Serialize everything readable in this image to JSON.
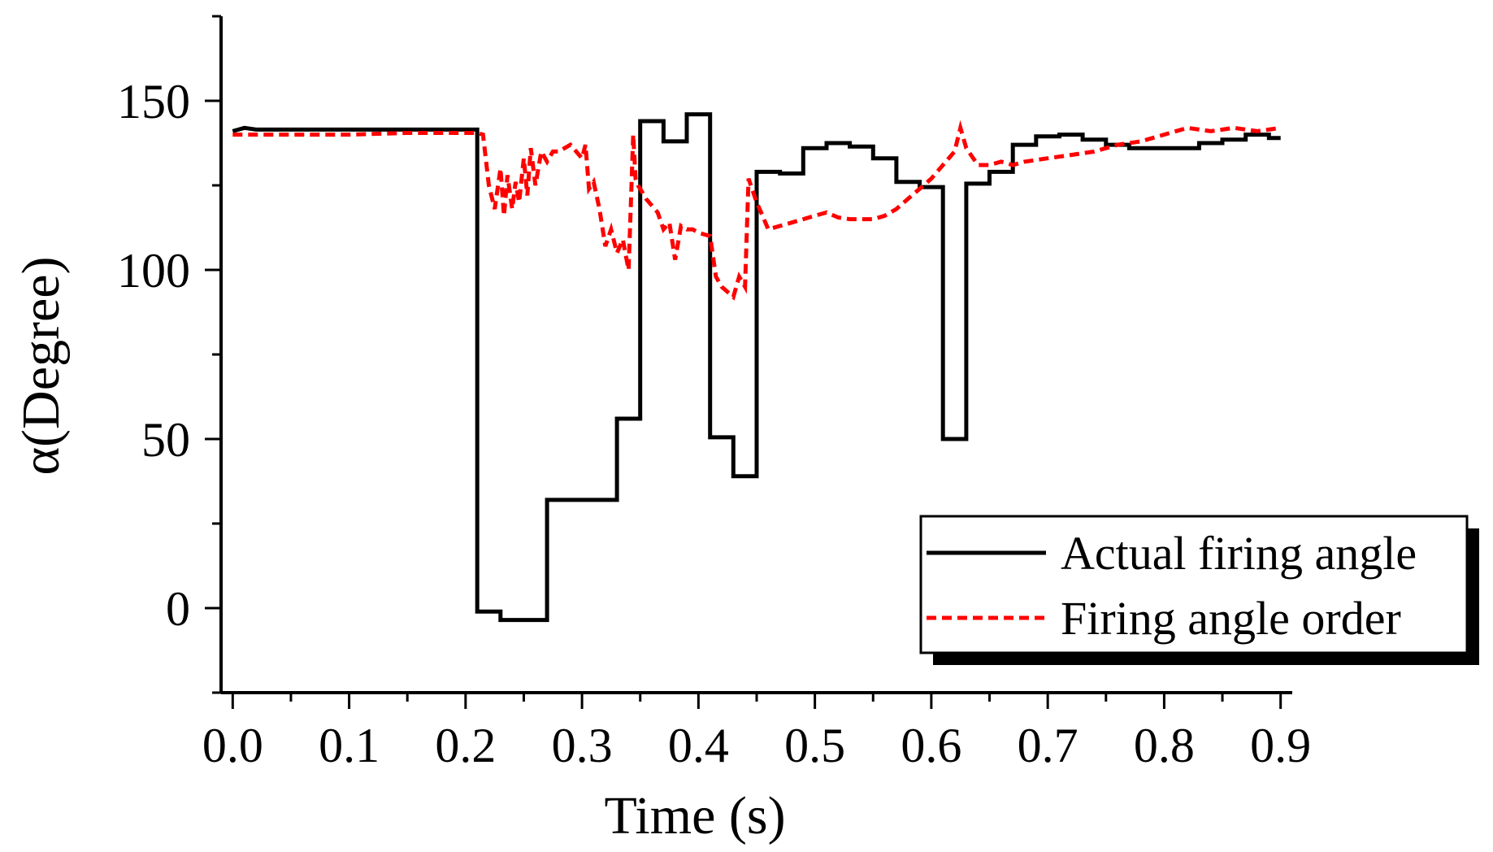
{
  "chart_data": {
    "type": "line",
    "title": "",
    "xlabel": "Time (s)",
    "ylabel": "α(Degree)",
    "xlim": [
      -0.01,
      0.91
    ],
    "ylim": [
      -25,
      175
    ],
    "xticks": [
      0.0,
      0.1,
      0.2,
      0.3,
      0.4,
      0.5,
      0.6,
      0.7,
      0.8,
      0.9
    ],
    "xtick_labels": [
      "0.0",
      "0.1",
      "0.2",
      "0.3",
      "0.4",
      "0.5",
      "0.6",
      "0.7",
      "0.8",
      "0.9"
    ],
    "yticks": [
      0,
      50,
      100,
      150
    ],
    "ytick_labels": [
      "0",
      "50",
      "100",
      "150"
    ],
    "grid": false,
    "legend_position": "bottom-right",
    "series": [
      {
        "name": "Actual firing angle",
        "color": "#000000",
        "style": "solid",
        "step": true,
        "x": [
          0.0,
          0.01,
          0.02,
          0.05,
          0.1,
          0.15,
          0.2,
          0.21,
          0.21,
          0.23,
          0.23,
          0.27,
          0.27,
          0.33,
          0.33,
          0.35,
          0.35,
          0.37,
          0.37,
          0.39,
          0.39,
          0.41,
          0.41,
          0.43,
          0.43,
          0.45,
          0.45,
          0.47,
          0.47,
          0.49,
          0.49,
          0.51,
          0.51,
          0.53,
          0.53,
          0.55,
          0.55,
          0.57,
          0.57,
          0.59,
          0.59,
          0.61,
          0.61,
          0.63,
          0.63,
          0.65,
          0.65,
          0.67,
          0.67,
          0.69,
          0.69,
          0.71,
          0.71,
          0.73,
          0.73,
          0.75,
          0.75,
          0.77,
          0.77,
          0.79,
          0.79,
          0.81,
          0.81,
          0.83,
          0.83,
          0.85,
          0.85,
          0.87,
          0.87,
          0.89,
          0.89,
          0.9
        ],
        "y": [
          141,
          142,
          141.5,
          141.5,
          141.5,
          141.5,
          141.5,
          141.5,
          -1,
          -1,
          -3.5,
          -3.5,
          32,
          32,
          56,
          56,
          144,
          144,
          138,
          138,
          146,
          146,
          50.5,
          50.5,
          39,
          39,
          129,
          129,
          128.5,
          128.5,
          136,
          136,
          137.5,
          137.5,
          136.5,
          136.5,
          133,
          133,
          126,
          126,
          124.5,
          124.5,
          50,
          50,
          125.5,
          125.5,
          129,
          129,
          137,
          137,
          139.5,
          139.5,
          140,
          140,
          138.5,
          138.5,
          137,
          137,
          136,
          136,
          136,
          136,
          136,
          136,
          137.5,
          137.5,
          138.5,
          138.5,
          140,
          140,
          139,
          139
        ]
      },
      {
        "name": "Firing angle order",
        "color": "#ff0000",
        "style": "dashed",
        "step": false,
        "x": [
          0.0,
          0.05,
          0.1,
          0.15,
          0.2,
          0.21,
          0.215,
          0.22,
          0.225,
          0.23,
          0.233,
          0.236,
          0.24,
          0.243,
          0.246,
          0.25,
          0.253,
          0.256,
          0.26,
          0.265,
          0.27,
          0.275,
          0.28,
          0.29,
          0.3,
          0.303,
          0.306,
          0.31,
          0.315,
          0.32,
          0.325,
          0.33,
          0.335,
          0.34,
          0.342,
          0.344,
          0.346,
          0.348,
          0.35,
          0.355,
          0.36,
          0.365,
          0.37,
          0.375,
          0.38,
          0.385,
          0.39,
          0.395,
          0.4,
          0.41,
          0.415,
          0.42,
          0.43,
          0.435,
          0.44,
          0.443,
          0.446,
          0.45,
          0.455,
          0.46,
          0.47,
          0.48,
          0.49,
          0.5,
          0.51,
          0.52,
          0.53,
          0.54,
          0.55,
          0.56,
          0.57,
          0.58,
          0.59,
          0.6,
          0.61,
          0.62,
          0.625,
          0.63,
          0.64,
          0.65,
          0.66,
          0.67,
          0.68,
          0.7,
          0.72,
          0.74,
          0.76,
          0.78,
          0.8,
          0.82,
          0.84,
          0.86,
          0.88,
          0.9
        ],
        "y": [
          140,
          140,
          140,
          140.5,
          140.5,
          140.5,
          140,
          125,
          118,
          130,
          116,
          128,
          118,
          126,
          120,
          133,
          122,
          136,
          125,
          135,
          132,
          135,
          135,
          137,
          133,
          137,
          124,
          126,
          118,
          107,
          112,
          105,
          109,
          100,
          120,
          140,
          127,
          125,
          124,
          121,
          119,
          117,
          112,
          114,
          103,
          113,
          112,
          112,
          111,
          110,
          98,
          95,
          92,
          98,
          95,
          127,
          124,
          120,
          116,
          112,
          113,
          114,
          115,
          116,
          117,
          115.5,
          115,
          115,
          115,
          116,
          118,
          121,
          124,
          127,
          131,
          135,
          142,
          136,
          131,
          131,
          132,
          131,
          132,
          133,
          134,
          135,
          137,
          138,
          140,
          142,
          141,
          142,
          141,
          142
        ]
      }
    ]
  }
}
